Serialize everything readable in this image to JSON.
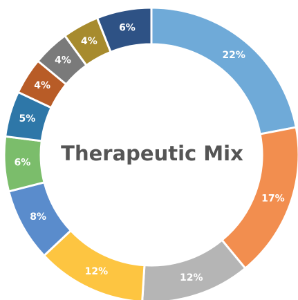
{
  "chart_data": {
    "type": "donut",
    "title": "Therapeutic Mix",
    "values": [
      22,
      17,
      12,
      12,
      8,
      6,
      5,
      4,
      4,
      4,
      6
    ],
    "value_labels": [
      "22%",
      "17%",
      "12%",
      "12%",
      "8%",
      "6%",
      "5%",
      "4%",
      "4%",
      "4%",
      "6%"
    ],
    "colors": [
      "#6faad8",
      "#f28e4f",
      "#b5b5b5",
      "#fdc541",
      "#5a8ccc",
      "#7bbd6b",
      "#2e77a8",
      "#b85c27",
      "#7a7a7a",
      "#a78b2e",
      "#2e5285"
    ]
  }
}
